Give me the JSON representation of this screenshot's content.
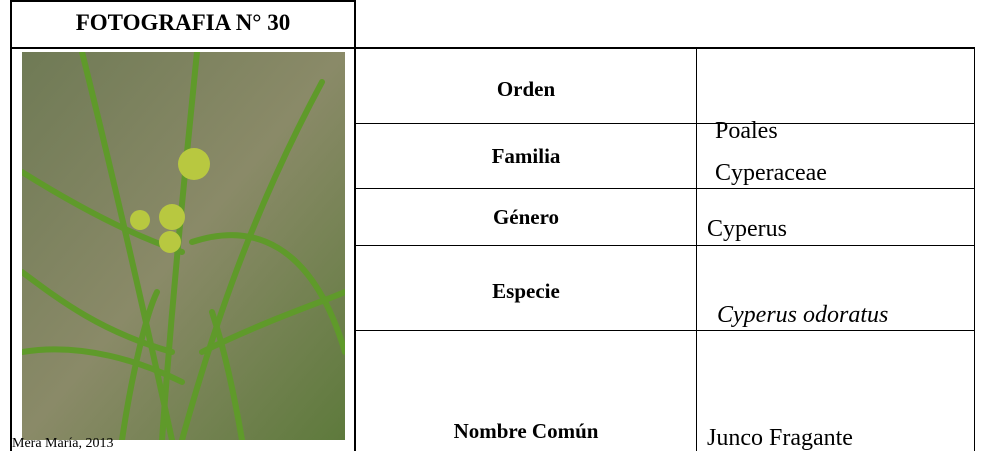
{
  "header": {
    "title": "FOTOGRAFIA N° 30"
  },
  "photo": {
    "caption": "Mera María, 2013"
  },
  "table": {
    "rows": [
      {
        "label": "Orden",
        "value": "Poales"
      },
      {
        "label": "Familia",
        "value": "Cyperaceae"
      },
      {
        "label": "Género",
        "value": "Cyperus"
      },
      {
        "label": "Especie",
        "value": "Cyperus odoratus"
      },
      {
        "label": "Nombre Común",
        "value": "Junco Fragante"
      }
    ]
  }
}
